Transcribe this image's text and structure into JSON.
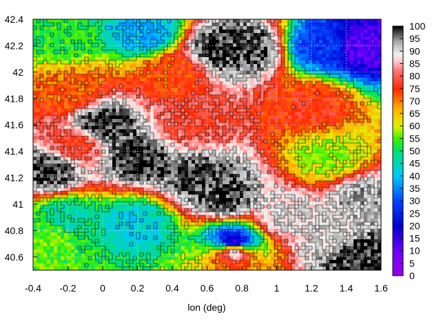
{
  "chart_data": {
    "type": "heatmap",
    "xlabel": "lon (deg)",
    "ylabel": "",
    "xlim": [
      -0.4,
      1.6
    ],
    "ylim": [
      40.5,
      42.4
    ],
    "x_ticks": [
      "-0.4",
      "-0.2",
      "0",
      "0.2",
      "0.4",
      "0.6",
      "0.8",
      "1",
      "1.2",
      "1.4",
      "1.6"
    ],
    "y_ticks": [
      "40.6",
      "40.8",
      "41",
      "41.2",
      "41.4",
      "41.6",
      "41.8",
      "42",
      "42.2",
      "42.4"
    ],
    "colorbar": {
      "range": [
        0,
        100
      ],
      "ticks": [
        "100",
        "95",
        "90",
        "85",
        "80",
        "75",
        "70",
        "65",
        "60",
        "55",
        "50",
        "45",
        "40",
        "35",
        "30",
        "25",
        "20",
        "15",
        "10",
        "5",
        "0"
      ],
      "palette": [
        {
          "v": 0,
          "color": "#9a00e6"
        },
        {
          "v": 10,
          "color": "#7000ff"
        },
        {
          "v": 20,
          "color": "#0000d0"
        },
        {
          "v": 30,
          "color": "#0044ff"
        },
        {
          "v": 40,
          "color": "#00c8ff"
        },
        {
          "v": 50,
          "color": "#00e070"
        },
        {
          "v": 55,
          "color": "#40f000"
        },
        {
          "v": 60,
          "color": "#e0f000"
        },
        {
          "v": 67,
          "color": "#ffb000"
        },
        {
          "v": 75,
          "color": "#ff2a00"
        },
        {
          "v": 82,
          "color": "#ff7070"
        },
        {
          "v": 86,
          "color": "#ffcaca"
        },
        {
          "v": 89,
          "color": "#f0f0f0"
        },
        {
          "v": 94,
          "color": "#a8a8a8"
        },
        {
          "v": 100,
          "color": "#000000"
        }
      ]
    },
    "grid": true,
    "grid_style": "dotted-white",
    "contours": "black-lines",
    "field_description_features": [
      {
        "lon": 0.0,
        "lat": 41.6,
        "value": 99
      },
      {
        "lon": 0.2,
        "lat": 41.35,
        "value": 99
      },
      {
        "lon": -0.3,
        "lat": 41.25,
        "value": 98
      },
      {
        "lon": 0.55,
        "lat": 41.2,
        "value": 98
      },
      {
        "lon": 0.7,
        "lat": 41.05,
        "value": 98
      },
      {
        "lon": 0.85,
        "lat": 42.18,
        "value": 98
      },
      {
        "lon": 0.67,
        "lat": 42.18,
        "value": 98
      },
      {
        "lon": 1.3,
        "lat": 40.75,
        "value": 90
      },
      {
        "lon": 1.05,
        "lat": 40.9,
        "value": 90
      },
      {
        "lon": 1.5,
        "lat": 41.05,
        "value": 93
      },
      {
        "lon": 1.45,
        "lat": 40.6,
        "value": 99
      },
      {
        "lon": 0.75,
        "lat": 40.65,
        "value": 91
      },
      {
        "lon": -0.15,
        "lat": 41.45,
        "value": 78
      },
      {
        "lon": 0.5,
        "lat": 41.6,
        "value": 79
      },
      {
        "lon": 1.2,
        "lat": 41.75,
        "value": 76
      },
      {
        "lon": 0.4,
        "lat": 42.0,
        "value": 74
      },
      {
        "lon": -0.2,
        "lat": 41.85,
        "value": 72
      },
      {
        "lon": 1.3,
        "lat": 41.35,
        "value": 58
      },
      {
        "lon": -0.2,
        "lat": 40.9,
        "value": 47
      },
      {
        "lon": 0.2,
        "lat": 40.85,
        "value": 42
      },
      {
        "lon": -0.3,
        "lat": 40.75,
        "value": 55
      },
      {
        "lon": 0.25,
        "lat": 42.3,
        "value": 38
      },
      {
        "lon": -0.25,
        "lat": 42.25,
        "value": 52
      },
      {
        "lon": 1.25,
        "lat": 42.2,
        "value": 28
      },
      {
        "lon": 1.5,
        "lat": 42.2,
        "value": 12
      },
      {
        "lon": 0.75,
        "lat": 40.7,
        "value": 12
      }
    ]
  }
}
